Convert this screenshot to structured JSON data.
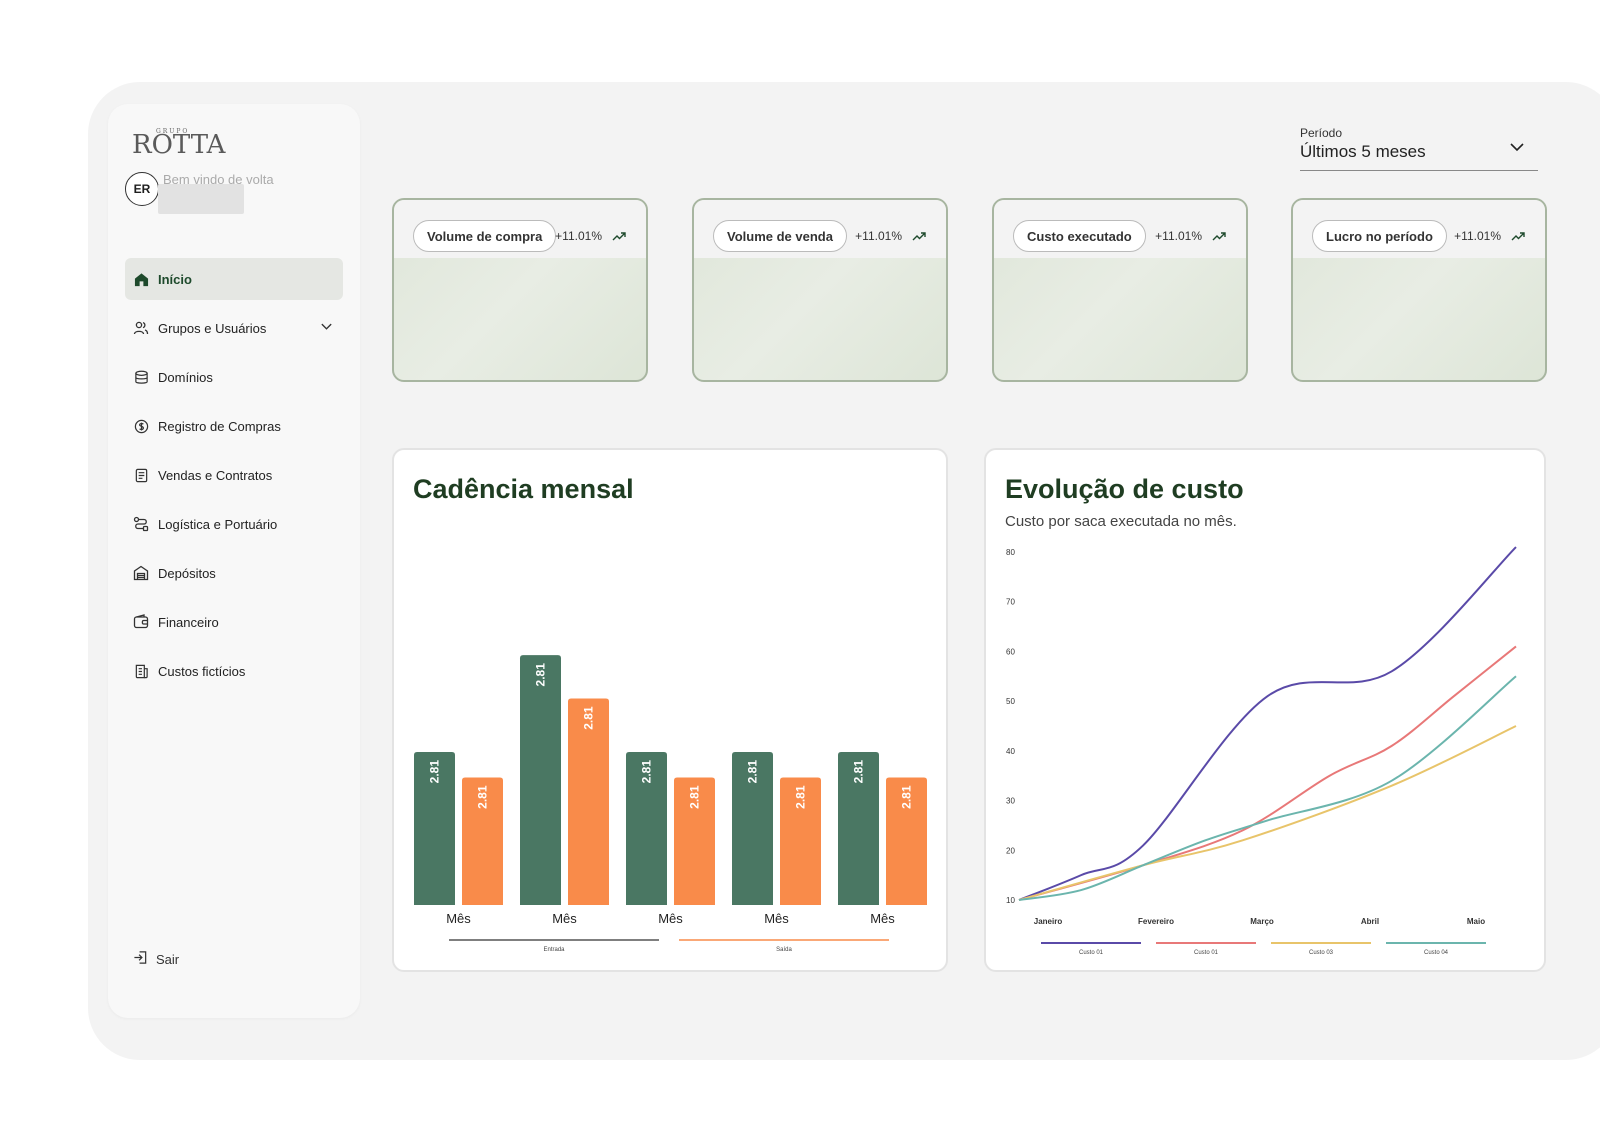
{
  "brand": {
    "group": "GRUPO",
    "name": "ROTTA"
  },
  "user": {
    "initials": "ER",
    "welcome": "Bem vindo de volta"
  },
  "nav": {
    "items": [
      {
        "label": "Início",
        "icon": "home-icon",
        "active": true
      },
      {
        "label": "Grupos e Usuários",
        "icon": "users-icon",
        "has_submenu": true
      },
      {
        "label": "Domínios",
        "icon": "database-icon"
      },
      {
        "label": "Registro de Compras",
        "icon": "dollar-circle-icon"
      },
      {
        "label": "Vendas e Contratos",
        "icon": "document-icon"
      },
      {
        "label": "Logística e Portuário",
        "icon": "route-icon"
      },
      {
        "label": "Depósitos",
        "icon": "warehouse-icon"
      },
      {
        "label": "Financeiro",
        "icon": "wallet-icon"
      },
      {
        "label": "Custos fictícios",
        "icon": "receipt-icon"
      }
    ],
    "logout": "Sair"
  },
  "period": {
    "label": "Período",
    "value": "Últimos 5 meses"
  },
  "kpis": [
    {
      "label": "Volume de compra",
      "delta": "+11.01%"
    },
    {
      "label": "Volume de venda",
      "delta": "+11.01%"
    },
    {
      "label": "Custo executado",
      "delta": "+11.01%"
    },
    {
      "label": "Lucro no período",
      "delta": "+11.01%"
    }
  ],
  "colors": {
    "accent": "#1e4a2c",
    "entrada": "#4a7763",
    "saida": "#f98b4a"
  },
  "chart_data": [
    {
      "type": "bar",
      "title": "Cadência mensal",
      "categories": [
        "Mês",
        "Mês",
        "Mês",
        "Mês",
        "Mês"
      ],
      "series": [
        {
          "name": "Entrada",
          "color": "#4a7763",
          "values": [
            60,
            98,
            60,
            60,
            60
          ],
          "labels": [
            "2.81",
            "2.81",
            "2.81",
            "2.81",
            "2.81"
          ]
        },
        {
          "name": "Saída",
          "color": "#f98b4a",
          "values": [
            50,
            81,
            50,
            50,
            50
          ],
          "labels": [
            "2.81",
            "2.81",
            "2.81",
            "2.81",
            "2.81"
          ]
        }
      ],
      "ylim": [
        0,
        100
      ],
      "legend": "bottom"
    },
    {
      "type": "line",
      "title": "Evolução de custo",
      "subtitle": "Custo por saca executada no mês.",
      "categories": [
        "Janeiro",
        "Fevereiro",
        "Março",
        "Abril",
        "Maio"
      ],
      "yticks": [
        "10",
        "20",
        "30",
        "40",
        "50",
        "60",
        "70",
        "80"
      ],
      "ylim": [
        10,
        80
      ],
      "series": [
        {
          "name": "Custo 01",
          "color": "#5a4aa8",
          "values": [
            [
              0,
              10
            ],
            [
              0.5,
              15
            ],
            [
              1,
              21
            ],
            [
              2,
              51
            ],
            [
              3,
              56
            ],
            [
              4,
              81
            ]
          ]
        },
        {
          "name": "Custo 01",
          "color": "#e87878",
          "values": [
            [
              0,
              10
            ],
            [
              1,
              17
            ],
            [
              1.8,
              24
            ],
            [
              2.5,
              35
            ],
            [
              3,
              41
            ],
            [
              3.5,
              51
            ],
            [
              4,
              61
            ]
          ]
        },
        {
          "name": "Custo 03",
          "color": "#e8c46a",
          "values": [
            [
              0,
              10
            ],
            [
              1,
              17
            ],
            [
              1.8,
              22
            ],
            [
              3,
              33
            ],
            [
              4,
              45
            ]
          ]
        },
        {
          "name": "Custo 04",
          "color": "#6bb5ad",
          "values": [
            [
              0,
              10
            ],
            [
              0.5,
              12
            ],
            [
              1,
              17
            ],
            [
              1.5,
              22
            ],
            [
              2,
              26
            ],
            [
              3,
              34
            ],
            [
              4,
              55
            ]
          ]
        }
      ],
      "legend": "bottom"
    }
  ]
}
